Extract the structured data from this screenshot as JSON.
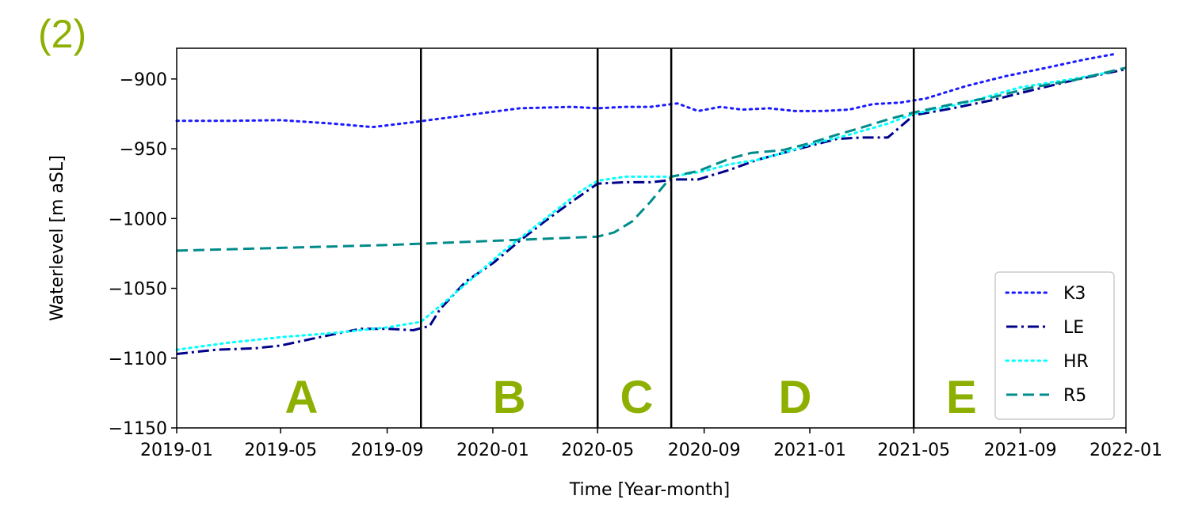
{
  "panel_label": "(2)",
  "colors": {
    "accent": "#8db000"
  },
  "chart_data": {
    "type": "line",
    "xlabel": "Time [Year-month]",
    "ylabel": "Waterlevel [m aSL]",
    "xlim": [
      "2019-01",
      "2022-01"
    ],
    "ylim": [
      -1150,
      -878
    ],
    "x_ticks": [
      "2019-01",
      "2019-05",
      "2019-09",
      "2020-01",
      "2020-05",
      "2020-09",
      "2021-01",
      "2021-05",
      "2021-09",
      "2022-01"
    ],
    "y_ticks": [
      -900,
      -950,
      -1000,
      -1050,
      -1100,
      -1150
    ],
    "y_tick_labels": [
      "−900",
      "−950",
      "−1000",
      "−1050",
      "−1100",
      "−1150"
    ],
    "legend_position": "lower-right",
    "vertical_lines": [
      "2019-10-10",
      "2020-05-01",
      "2020-07-25",
      "2021-05-01"
    ],
    "regions": [
      {
        "label": "A",
        "x": "2019-05-25"
      },
      {
        "label": "B",
        "x": "2020-01-20"
      },
      {
        "label": "C",
        "x": "2020-06-15"
      },
      {
        "label": "D",
        "x": "2020-12-15"
      },
      {
        "label": "E",
        "x": "2021-06-25"
      }
    ],
    "series": [
      {
        "name": "K3",
        "color": "#1a1aff",
        "dash": "dotted",
        "points": [
          [
            "2019-01-01",
            -930
          ],
          [
            "2019-03-01",
            -930
          ],
          [
            "2019-05-01",
            -929.5
          ],
          [
            "2019-07-01",
            -932
          ],
          [
            "2019-08-15",
            -934.5
          ],
          [
            "2019-10-01",
            -931
          ],
          [
            "2019-12-01",
            -926
          ],
          [
            "2020-02-01",
            -921
          ],
          [
            "2020-04-01",
            -920
          ],
          [
            "2020-05-01",
            -921
          ],
          [
            "2020-06-01",
            -920
          ],
          [
            "2020-07-01",
            -920
          ],
          [
            "2020-08-01",
            -917.5
          ],
          [
            "2020-08-25",
            -923
          ],
          [
            "2020-09-20",
            -920
          ],
          [
            "2020-10-15",
            -922
          ],
          [
            "2020-11-15",
            -921
          ],
          [
            "2020-12-15",
            -923
          ],
          [
            "2021-01-15",
            -923
          ],
          [
            "2021-02-15",
            -922
          ],
          [
            "2021-03-15",
            -918
          ],
          [
            "2021-04-15",
            -917
          ],
          [
            "2021-05-15",
            -914
          ],
          [
            "2021-07-01",
            -905
          ],
          [
            "2021-08-15",
            -898
          ],
          [
            "2021-10-01",
            -892
          ],
          [
            "2021-11-15",
            -886
          ],
          [
            "2021-12-20",
            -882
          ]
        ]
      },
      {
        "name": "LE",
        "color": "#00008b",
        "dash": "dashdot",
        "points": [
          [
            "2019-01-01",
            -1097
          ],
          [
            "2019-02-15",
            -1094
          ],
          [
            "2019-04-01",
            -1093
          ],
          [
            "2019-05-01",
            -1091
          ],
          [
            "2019-06-15",
            -1085
          ],
          [
            "2019-08-01",
            -1079
          ],
          [
            "2019-09-01",
            -1079
          ],
          [
            "2019-10-01",
            -1080
          ],
          [
            "2019-10-20",
            -1077
          ],
          [
            "2019-11-01",
            -1065
          ],
          [
            "2019-12-01",
            -1045
          ],
          [
            "2020-01-01",
            -1032
          ],
          [
            "2020-02-01",
            -1016
          ],
          [
            "2020-03-01",
            -1002
          ],
          [
            "2020-04-01",
            -988
          ],
          [
            "2020-05-01",
            -975
          ],
          [
            "2020-06-01",
            -974
          ],
          [
            "2020-07-01",
            -974
          ],
          [
            "2020-08-01",
            -972
          ],
          [
            "2020-08-25",
            -972
          ],
          [
            "2020-10-01",
            -965
          ],
          [
            "2020-11-01",
            -958
          ],
          [
            "2020-12-01",
            -953
          ],
          [
            "2021-01-01",
            -948
          ],
          [
            "2021-02-01",
            -943
          ],
          [
            "2021-03-01",
            -942
          ],
          [
            "2021-04-01",
            -942
          ],
          [
            "2021-05-01",
            -926
          ],
          [
            "2021-06-15",
            -921
          ],
          [
            "2021-08-01",
            -915
          ],
          [
            "2021-09-15",
            -908
          ],
          [
            "2021-11-01",
            -901
          ],
          [
            "2022-01-01",
            -893
          ]
        ]
      },
      {
        "name": "HR",
        "color": "#00ffff",
        "dash": "dotted",
        "points": [
          [
            "2019-01-01",
            -1094
          ],
          [
            "2019-03-01",
            -1089
          ],
          [
            "2019-05-01",
            -1085
          ],
          [
            "2019-07-01",
            -1082
          ],
          [
            "2019-09-01",
            -1078
          ],
          [
            "2019-10-10",
            -1074
          ],
          [
            "2019-11-10",
            -1058
          ],
          [
            "2019-12-10",
            -1042
          ],
          [
            "2020-01-10",
            -1025
          ],
          [
            "2020-02-10",
            -1010
          ],
          [
            "2020-03-10",
            -996
          ],
          [
            "2020-04-10",
            -981
          ],
          [
            "2020-05-01",
            -973
          ],
          [
            "2020-06-01",
            -970
          ],
          [
            "2020-07-01",
            -970
          ],
          [
            "2020-07-25",
            -970
          ],
          [
            "2020-09-01",
            -966
          ],
          [
            "2020-10-01",
            -961
          ],
          [
            "2020-11-01",
            -958
          ],
          [
            "2020-12-01",
            -953
          ],
          [
            "2021-01-01",
            -947
          ],
          [
            "2021-02-15",
            -940
          ],
          [
            "2021-04-01",
            -932
          ],
          [
            "2021-05-01",
            -925
          ],
          [
            "2021-07-01",
            -917
          ],
          [
            "2021-09-01",
            -906
          ],
          [
            "2021-11-01",
            -900
          ],
          [
            "2021-12-15",
            -895
          ]
        ]
      },
      {
        "name": "R5",
        "color": "#008b8b",
        "dash": "dashed",
        "points": [
          [
            "2019-01-01",
            -1023
          ],
          [
            "2019-05-01",
            -1021
          ],
          [
            "2019-09-01",
            -1019
          ],
          [
            "2020-01-01",
            -1016
          ],
          [
            "2020-05-01",
            -1013
          ],
          [
            "2020-05-20",
            -1010
          ],
          [
            "2020-06-10",
            -1002
          ],
          [
            "2020-07-01",
            -988
          ],
          [
            "2020-07-25",
            -970
          ],
          [
            "2020-08-25",
            -966
          ],
          [
            "2020-10-01",
            -957
          ],
          [
            "2020-10-25",
            -953
          ],
          [
            "2020-12-01",
            -951
          ],
          [
            "2021-01-01",
            -946
          ],
          [
            "2021-02-01",
            -940
          ],
          [
            "2021-03-01",
            -935
          ],
          [
            "2021-04-01",
            -929
          ],
          [
            "2021-05-01",
            -924
          ],
          [
            "2021-06-15",
            -918
          ],
          [
            "2021-08-01",
            -913
          ],
          [
            "2021-09-15",
            -906
          ],
          [
            "2021-11-01",
            -901
          ],
          [
            "2022-01-01",
            -892
          ]
        ]
      }
    ]
  }
}
